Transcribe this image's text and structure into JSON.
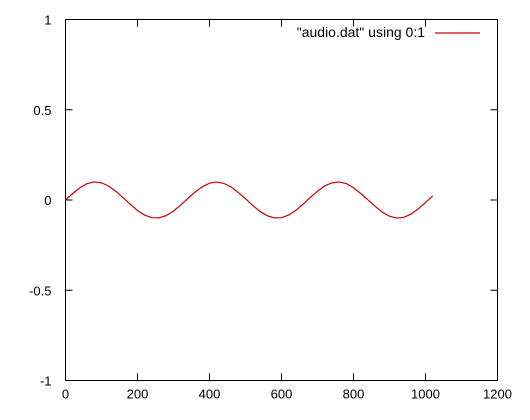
{
  "chart_data": {
    "type": "line",
    "title": "",
    "xlabel": "",
    "ylabel": "",
    "xlim": [
      0,
      1200
    ],
    "ylim": [
      -1,
      1
    ],
    "x_ticks": [
      0,
      200,
      400,
      600,
      800,
      1000,
      1200
    ],
    "y_ticks": [
      -1,
      -0.5,
      0,
      0.5,
      1
    ],
    "x_tick_labels": [
      "0",
      "200",
      "400",
      "600",
      "800",
      "1000",
      "1200"
    ],
    "y_tick_labels": [
      "-1",
      "-0.5",
      "0",
      "0.5",
      "1"
    ],
    "grid": false,
    "legend_position": "top-right",
    "series": [
      {
        "name": "\"audio.dat\" using 0:1",
        "color": "#cc0000",
        "x": [
          0,
          20,
          40,
          60,
          80,
          100,
          120,
          140,
          160,
          180,
          200,
          220,
          240,
          260,
          280,
          300,
          320,
          340,
          360,
          380,
          400,
          420,
          440,
          460,
          480,
          500,
          520,
          540,
          560,
          580,
          600,
          620,
          640,
          660,
          680,
          700,
          720,
          740,
          760,
          780,
          800,
          820,
          840,
          860,
          880,
          900,
          920,
          940,
          960,
          980,
          1000,
          1020
        ],
        "y": [
          0.0,
          0.036,
          0.068,
          0.091,
          0.1,
          0.095,
          0.077,
          0.048,
          0.013,
          -0.024,
          -0.058,
          -0.084,
          -0.098,
          -0.099,
          -0.086,
          -0.061,
          -0.028,
          0.009,
          0.044,
          0.073,
          0.093,
          0.1,
          0.092,
          0.072,
          0.042,
          0.007,
          -0.03,
          -0.063,
          -0.087,
          -0.099,
          -0.098,
          -0.083,
          -0.057,
          -0.023,
          0.014,
          0.049,
          0.078,
          0.095,
          0.1,
          0.091,
          0.068,
          0.036,
          0.001,
          -0.035,
          -0.067,
          -0.09,
          -0.1,
          -0.096,
          -0.078,
          -0.049,
          -0.014,
          0.023
        ]
      }
    ]
  }
}
